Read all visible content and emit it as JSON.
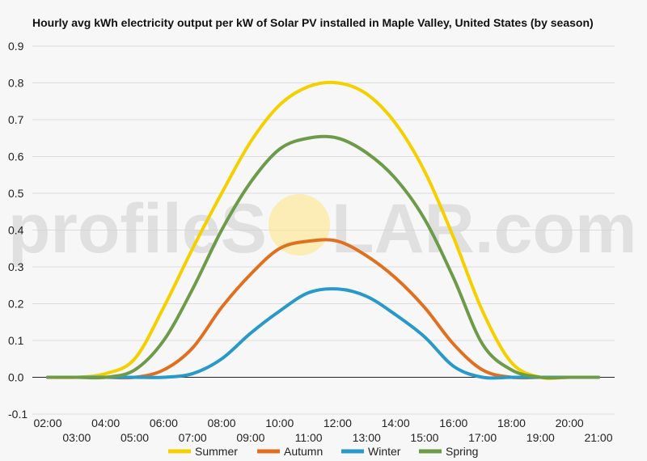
{
  "chart_data": {
    "type": "line",
    "title": "Hourly avg kWh electricity output per kW of Solar PV installed in Maple Valley, United States (by season)",
    "xlabel": "",
    "ylabel": "",
    "x": [
      "02:00",
      "03:00",
      "04:00",
      "05:00",
      "06:00",
      "07:00",
      "08:00",
      "09:00",
      "10:00",
      "11:00",
      "12:00",
      "13:00",
      "14:00",
      "15:00",
      "16:00",
      "17:00",
      "18:00",
      "19:00",
      "20:00",
      "21:00"
    ],
    "x_upper_ticks": [
      "02:00",
      "04:00",
      "06:00",
      "08:00",
      "10:00",
      "12:00",
      "14:00",
      "16:00",
      "18:00",
      "20:00"
    ],
    "x_lower_ticks": [
      "03:00",
      "05:00",
      "07:00",
      "09:00",
      "11:00",
      "13:00",
      "15:00",
      "17:00",
      "19:00",
      "21:00"
    ],
    "ylim": [
      -0.1,
      0.9
    ],
    "y_ticks": [
      "0.9",
      "0.8",
      "0.7",
      "0.6",
      "0.5",
      "0.4",
      "0.3",
      "0.2",
      "0.1",
      "0.0",
      "-0.1"
    ],
    "grid": true,
    "legend_position": "bottom",
    "series": [
      {
        "name": "Summer",
        "color": "#f5d000",
        "values": [
          0.0,
          0.0,
          0.01,
          0.05,
          0.19,
          0.35,
          0.5,
          0.64,
          0.74,
          0.79,
          0.8,
          0.77,
          0.69,
          0.56,
          0.38,
          0.18,
          0.04,
          0.0,
          0.0,
          0.0
        ]
      },
      {
        "name": "Autumn",
        "color": "#e07020",
        "values": [
          0.0,
          0.0,
          0.0,
          0.0,
          0.02,
          0.08,
          0.19,
          0.28,
          0.35,
          0.37,
          0.37,
          0.33,
          0.27,
          0.19,
          0.09,
          0.02,
          0.0,
          0.0,
          0.0,
          0.0
        ]
      },
      {
        "name": "Winter",
        "color": "#2899c8",
        "values": [
          0.0,
          0.0,
          0.0,
          0.0,
          0.0,
          0.01,
          0.05,
          0.12,
          0.18,
          0.23,
          0.24,
          0.22,
          0.17,
          0.11,
          0.03,
          0.0,
          0.0,
          0.0,
          0.0,
          0.0
        ]
      },
      {
        "name": "Spring",
        "color": "#6d9b4a",
        "values": [
          0.0,
          0.0,
          0.0,
          0.02,
          0.1,
          0.24,
          0.4,
          0.53,
          0.62,
          0.65,
          0.65,
          0.61,
          0.54,
          0.43,
          0.27,
          0.09,
          0.02,
          0.0,
          0.0,
          0.0
        ]
      }
    ]
  },
  "watermark": {
    "left": "profileS",
    "right": "LAR.com",
    "sun_color": "#ffe680"
  }
}
